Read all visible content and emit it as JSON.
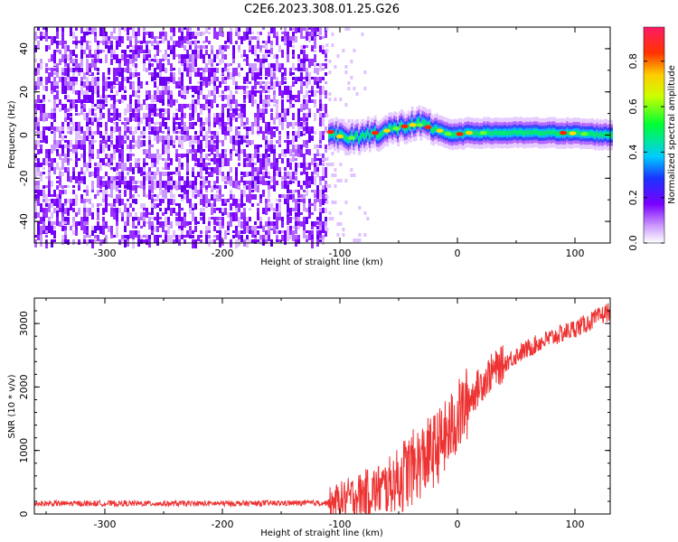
{
  "title": "C2E6.2023.308.01.25.G26",
  "chart_data": [
    {
      "type": "heatmap",
      "xlabel": "Height of straight line (km)",
      "ylabel": "Frequency (Hz)",
      "xlim": [
        -360,
        130
      ],
      "ylim": [
        -50,
        50
      ],
      "x_ticks": [
        -300,
        -200,
        -100,
        0,
        100
      ],
      "y_ticks": [
        -40,
        -20,
        0,
        20,
        40
      ],
      "noise_region_x": [
        -360,
        -112
      ],
      "signal_line": [
        {
          "x": -110,
          "y": 2
        },
        {
          "x": -95,
          "y": -2
        },
        {
          "x": -80,
          "y": 0
        },
        {
          "x": -60,
          "y": 2
        },
        {
          "x": -45,
          "y": 4
        },
        {
          "x": -35,
          "y": 5
        },
        {
          "x": -20,
          "y": 3
        },
        {
          "x": -5,
          "y": 0
        },
        {
          "x": 10,
          "y": 1
        },
        {
          "x": 30,
          "y": 1
        },
        {
          "x": 60,
          "y": 1
        },
        {
          "x": 90,
          "y": 1
        },
        {
          "x": 130,
          "y": 0
        }
      ],
      "colorbar": {
        "label": "Normalized spectral amplitude",
        "range": [
          0,
          0.95
        ],
        "ticks": [
          0.0,
          0.2,
          0.4,
          0.6,
          0.8
        ]
      }
    },
    {
      "type": "line",
      "xlabel": "Height of straight line (km)",
      "ylabel": "SNR (10 * v/v)",
      "xlim": [
        -360,
        130
      ],
      "ylim": [
        0,
        3400
      ],
      "x_ticks": [
        -300,
        -200,
        -100,
        0,
        100
      ],
      "y_ticks": [
        0,
        1000,
        2000,
        3000
      ],
      "line_color": "#ee3333",
      "series": [
        {
          "x": [
            -360,
            -300,
            -200,
            -110,
            -100,
            -80,
            -60,
            -40,
            -20,
            -10,
            0,
            10,
            20,
            30,
            50,
            70,
            90,
            110,
            130
          ],
          "values": [
            150,
            150,
            150,
            160,
            220,
            320,
            420,
            700,
            1000,
            1200,
            1500,
            1800,
            2050,
            2250,
            2500,
            2700,
            2850,
            3000,
            3200
          ]
        }
      ]
    }
  ]
}
